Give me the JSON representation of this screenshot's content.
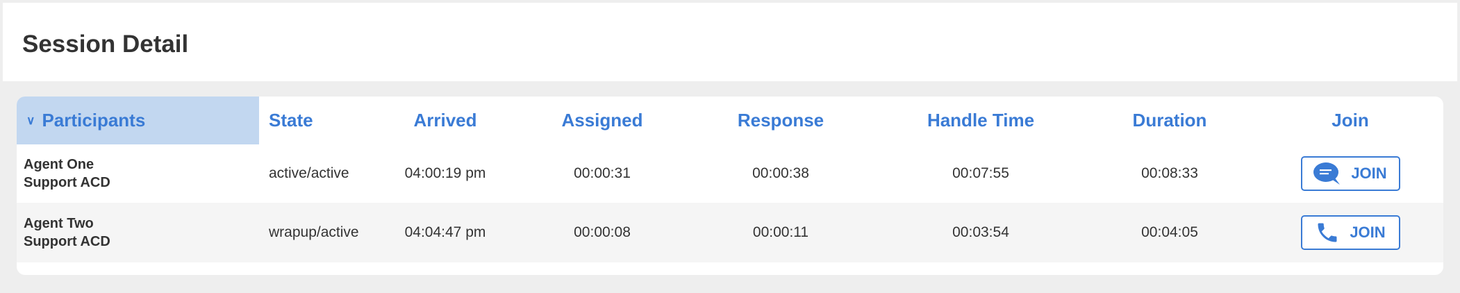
{
  "page": {
    "title": "Session Detail"
  },
  "table": {
    "columns": [
      "Participants",
      "State",
      "Arrived",
      "Assigned",
      "Response",
      "Handle Time",
      "Duration",
      "Join"
    ],
    "rows": [
      {
        "name": "Agent One",
        "queue": "Support ACD",
        "state": "active/active",
        "arrived": "04:00:19 pm",
        "assigned": "00:00:31",
        "response": "00:00:38",
        "handle_time": "00:07:55",
        "duration": "00:08:33",
        "join_label": "JOIN",
        "join_icon": "chat-icon"
      },
      {
        "name": "Agent Two",
        "queue": "Support ACD",
        "state": "wrapup/active",
        "arrived": "04:04:47 pm",
        "assigned": "00:00:08",
        "response": "00:00:11",
        "handle_time": "00:03:54",
        "duration": "00:04:05",
        "join_label": "JOIN",
        "join_icon": "phone-icon"
      }
    ]
  },
  "colors": {
    "accent": "#3a7bd5",
    "header_highlight": "#c2d7f0"
  }
}
